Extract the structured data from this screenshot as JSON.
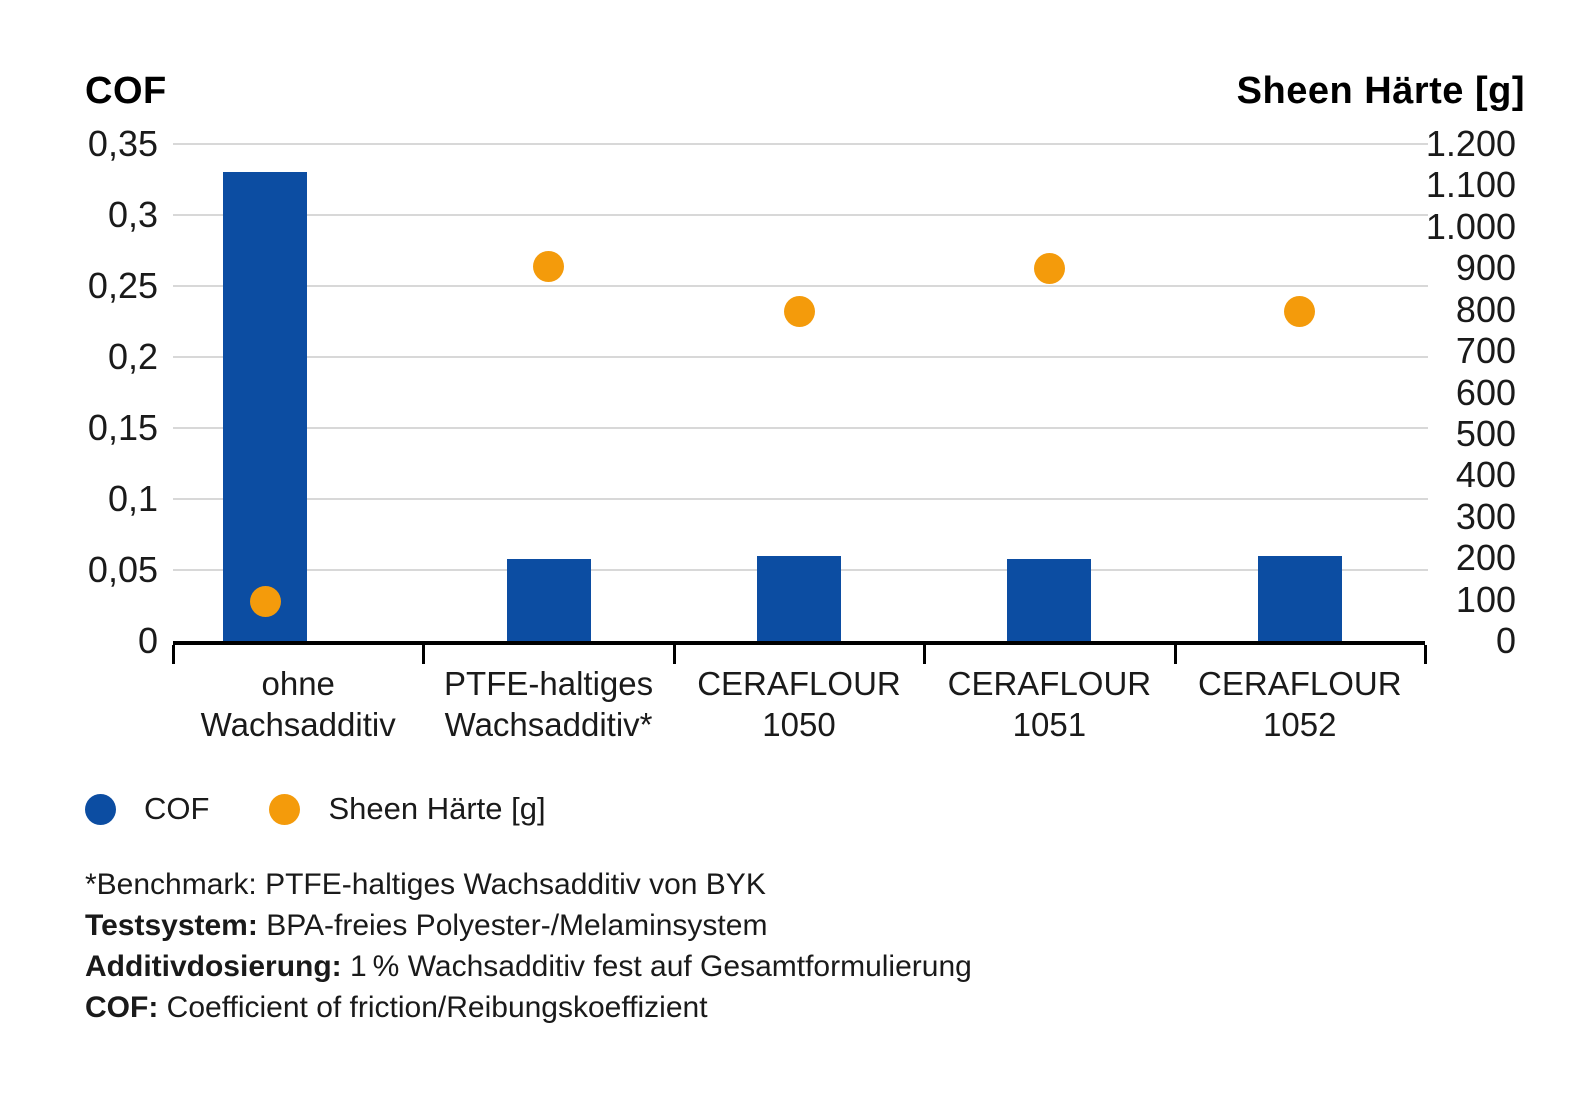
{
  "chart_data": {
    "type": "combo-bar-scatter",
    "title_left_axis": "COF",
    "title_right_axis": "Sheen Härte [g]",
    "categories": [
      {
        "lines": [
          "ohne",
          "Wachsadditiv"
        ]
      },
      {
        "lines": [
          "PTFE-haltiges",
          "Wachsadditiv*"
        ]
      },
      {
        "lines": [
          "CERAFLOUR 1050"
        ]
      },
      {
        "lines": [
          "CERAFLOUR 1051"
        ]
      },
      {
        "lines": [
          "CERAFLOUR 1052"
        ]
      }
    ],
    "series": [
      {
        "name": "COF",
        "type": "bar",
        "axis": "left",
        "color": "#0c4da2",
        "values": [
          0.33,
          0.058,
          0.06,
          0.058,
          0.06
        ]
      },
      {
        "name": "Sheen Härte [g]",
        "type": "scatter",
        "axis": "right",
        "color": "#f49b0b",
        "values": [
          95,
          905,
          795,
          900,
          795
        ]
      }
    ],
    "left_axis": {
      "min": 0,
      "max": 0.35,
      "step": 0.05,
      "tick_labels": [
        "0,35",
        "0,3",
        "0,25",
        "0,2",
        "0,15",
        "0,1",
        "0,05",
        "0"
      ]
    },
    "right_axis": {
      "min": 0,
      "max": 1200,
      "step": 100,
      "tick_labels": [
        "1.200",
        "1.100",
        "1.000",
        "900",
        "800",
        "700",
        "600",
        "500",
        "400",
        "300",
        "200",
        "100",
        "0"
      ]
    },
    "grid": "horizontal",
    "legend_position": "bottom-left",
    "colors": {
      "bar_blue": "#0c4da2",
      "dot_orange": "#f49b0b",
      "gridline": "#d8d8d8",
      "axis": "#000000"
    }
  },
  "legend": {
    "items": [
      {
        "label": "COF",
        "color": "#0c4da2"
      },
      {
        "label": "Sheen Härte [g]",
        "color": "#f49b0b"
      }
    ]
  },
  "footnotes": [
    {
      "bold": "",
      "rest": "*Benchmark: PTFE-haltiges Wachsadditiv von BYK"
    },
    {
      "bold": "Testsystem:",
      "rest": " BPA-freies Polyester-/Melaminsystem"
    },
    {
      "bold": "Additivdosierung:",
      "rest": " 1 % Wachsadditiv fest auf Gesamtformulierung"
    },
    {
      "bold": "COF:",
      "rest": " Coefficient of friction/Reibungskoeffizient"
    }
  ]
}
